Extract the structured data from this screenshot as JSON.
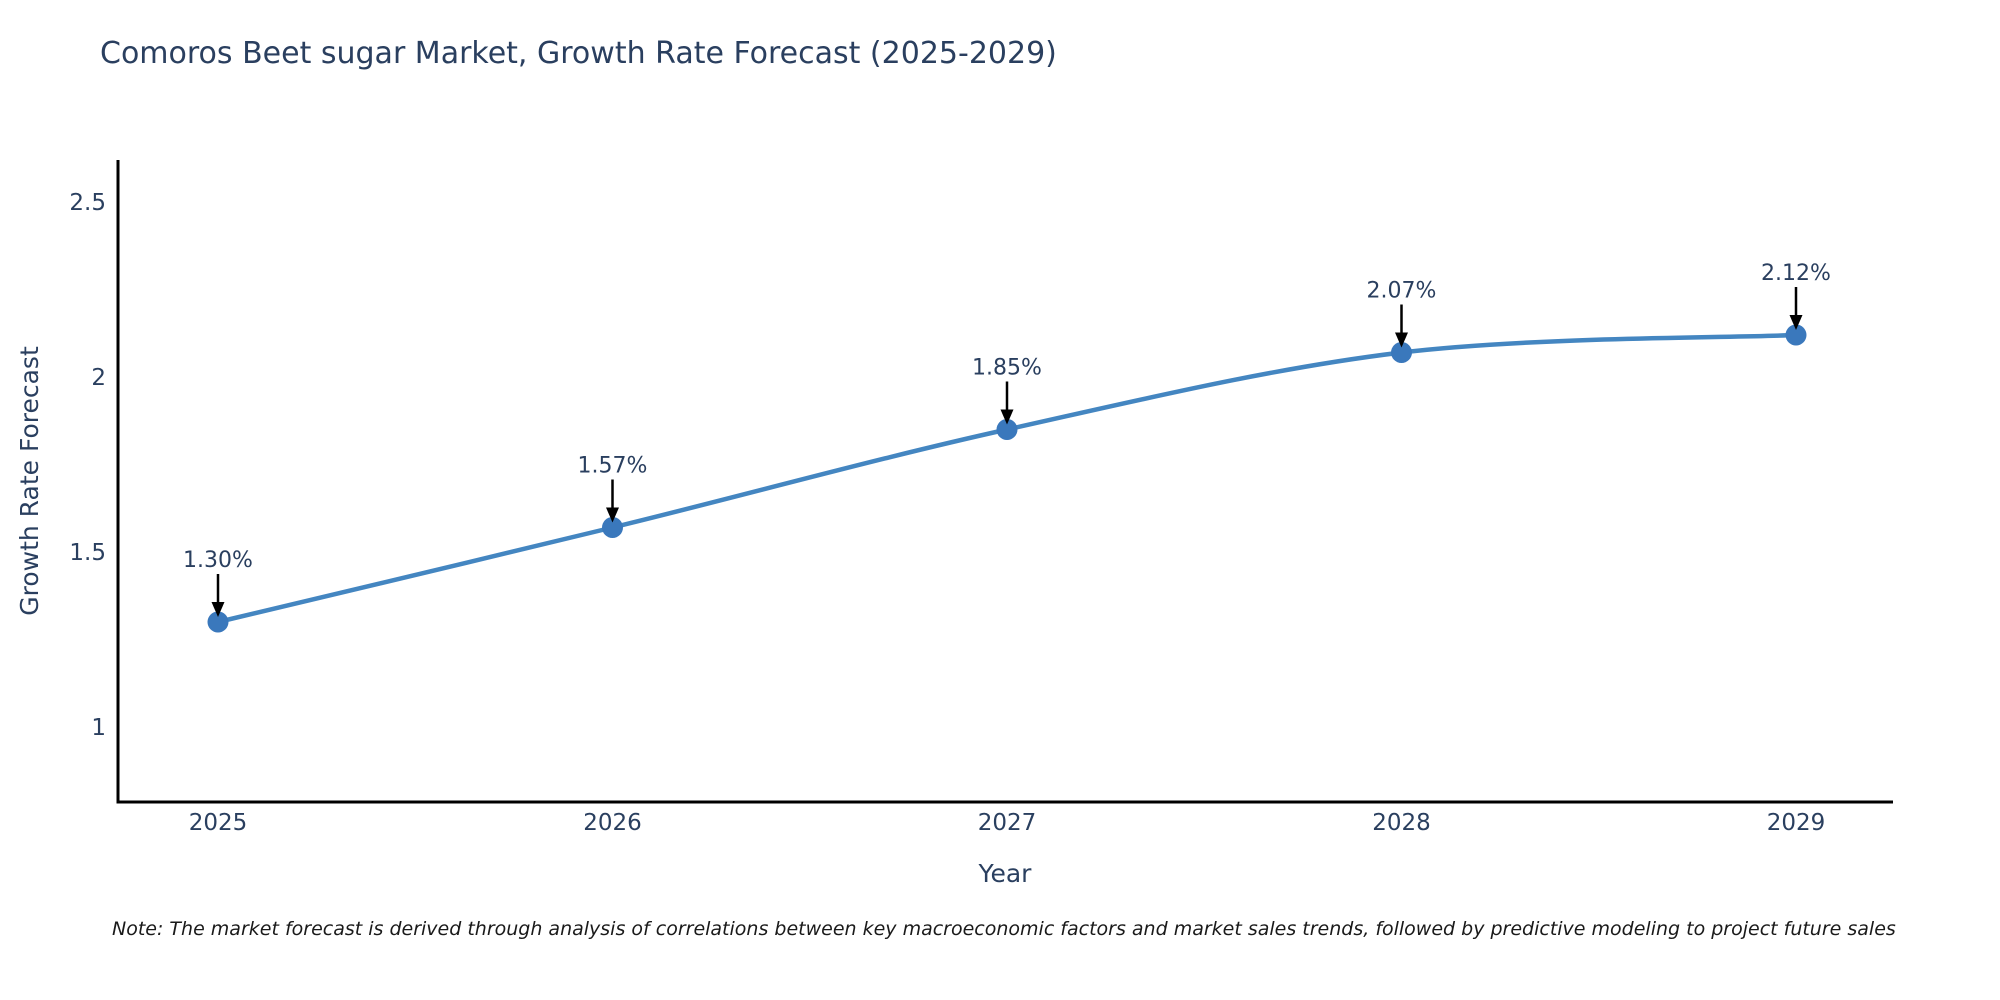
{
  "title": "Comoros Beet sugar Market, Growth Rate Forecast (2025-2029)",
  "note": "Note: The market forecast is derived through analysis of correlations between key macroeconomic factors and market sales trends, followed by predictive modeling to project future sales",
  "chart_data": {
    "type": "line",
    "title": "Comoros Beet sugar Market, Growth Rate Forecast (2025-2029)",
    "xlabel": "Year",
    "ylabel": "Growth Rate Forecast",
    "categories": [
      "2025",
      "2026",
      "2027",
      "2028",
      "2029"
    ],
    "series": [
      {
        "name": "Growth Rate Forecast",
        "values": [
          1.3,
          1.57,
          1.85,
          2.07,
          2.12
        ],
        "point_labels": [
          "1.30%",
          "1.57%",
          "1.85%",
          "2.07%",
          "2.12%"
        ]
      }
    ],
    "y_ticks": [
      "1",
      "1.5",
      "2",
      "2.5"
    ],
    "y_tick_values": [
      1,
      1.5,
      2,
      2.5
    ],
    "ylim": [
      0.78,
      2.62
    ],
    "line_shape": "spline",
    "grid": false,
    "legend_position": "none",
    "colors": {
      "line": "#4486c1",
      "marker": "#3a78bc",
      "axis": "#000000",
      "arrow": "#000000",
      "text": "#2a3f5f"
    }
  }
}
